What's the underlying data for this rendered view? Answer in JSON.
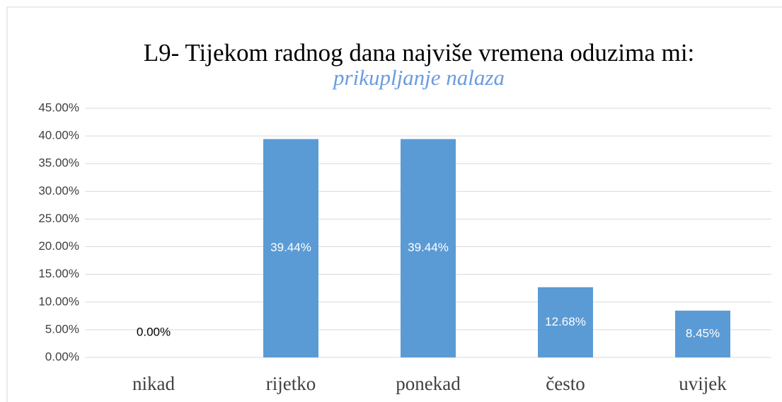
{
  "chart_data": {
    "type": "bar",
    "title": "L9- Tijekom radnog dana najviše vremena oduzima mi:",
    "subtitle": "prikupljanje nalaza",
    "categories": [
      "nikad",
      "rijetko",
      "ponekad",
      "često",
      "uvijek"
    ],
    "values": [
      0,
      39.44,
      39.44,
      12.68,
      8.45
    ],
    "value_labels": [
      "0.00%",
      "39.44%",
      "39.44%",
      "12.68%",
      "8.45%"
    ],
    "color": "#5b9bd5",
    "ylim": [
      0,
      45
    ],
    "yticks": [
      {
        "value": 0,
        "label": "0.00%"
      },
      {
        "value": 5,
        "label": "5.00%"
      },
      {
        "value": 10,
        "label": "10.00%"
      },
      {
        "value": 15,
        "label": "15.00%"
      },
      {
        "value": 20,
        "label": "20.00%"
      },
      {
        "value": 25,
        "label": "25.00%"
      },
      {
        "value": 30,
        "label": "30.00%"
      },
      {
        "value": 35,
        "label": "35.00%"
      },
      {
        "value": 40,
        "label": "40.00%"
      },
      {
        "value": 45,
        "label": "45.00%"
      }
    ],
    "grid": true
  }
}
